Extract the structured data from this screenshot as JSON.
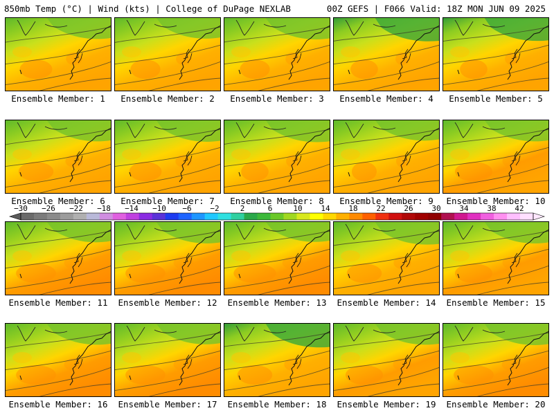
{
  "header": {
    "left_title": "850mb Temp (°C) | Wind (kts) | College of DuPage NEXLAB",
    "right_title": "00Z GEFS | F066 Valid: 18Z MON JUN 09 2025"
  },
  "members": [
    {
      "label": "Ensemble Member: 1",
      "green_strength": 0.55,
      "orange_strength": 0.65
    },
    {
      "label": "Ensemble Member: 2",
      "green_strength": 0.5,
      "orange_strength": 0.6
    },
    {
      "label": "Ensemble Member: 3",
      "green_strength": 0.6,
      "orange_strength": 0.6
    },
    {
      "label": "Ensemble Member: 4",
      "green_strength": 0.85,
      "orange_strength": 0.55
    },
    {
      "label": "Ensemble Member: 5",
      "green_strength": 0.8,
      "orange_strength": 0.55
    },
    {
      "label": "Ensemble Member: 6",
      "green_strength": 0.55,
      "orange_strength": 0.7
    },
    {
      "label": "Ensemble Member: 7",
      "green_strength": 0.6,
      "orange_strength": 0.65
    },
    {
      "label": "Ensemble Member: 8",
      "green_strength": 0.65,
      "orange_strength": 0.55
    },
    {
      "label": "Ensemble Member: 9",
      "green_strength": 0.45,
      "orange_strength": 0.5
    },
    {
      "label": "Ensemble Member: 10",
      "green_strength": 0.55,
      "orange_strength": 0.75
    },
    {
      "label": "Ensemble Member: 11",
      "green_strength": 0.45,
      "orange_strength": 0.8
    },
    {
      "label": "Ensemble Member: 12",
      "green_strength": 0.6,
      "orange_strength": 0.8
    },
    {
      "label": "Ensemble Member: 13",
      "green_strength": 0.4,
      "orange_strength": 0.85
    },
    {
      "label": "Ensemble Member: 14",
      "green_strength": 0.75,
      "orange_strength": 0.7
    },
    {
      "label": "Ensemble Member: 15",
      "green_strength": 0.6,
      "orange_strength": 0.75
    },
    {
      "label": "Ensemble Member: 16",
      "green_strength": 0.55,
      "orange_strength": 0.8
    },
    {
      "label": "Ensemble Member: 17",
      "green_strength": 0.5,
      "orange_strength": 0.8
    },
    {
      "label": "Ensemble Member: 18",
      "green_strength": 0.9,
      "orange_strength": 0.7
    },
    {
      "label": "Ensemble Member: 19",
      "green_strength": 0.55,
      "orange_strength": 0.75
    },
    {
      "label": "Ensemble Member: 20",
      "green_strength": 0.6,
      "orange_strength": 0.8
    }
  ],
  "colorbar": {
    "tick_labels": [
      "-30",
      "-26",
      "-22",
      "-18",
      "-14",
      "-10",
      "-6",
      "-2",
      "2",
      "6",
      "10",
      "14",
      "18",
      "22",
      "26",
      "30",
      "34",
      "38",
      "42"
    ],
    "colors": [
      "#6b6b6b",
      "#7b7b7b",
      "#8b8b8b",
      "#9c9c9c",
      "#b0b0b0",
      "#b9b9d9",
      "#d08de0",
      "#e060e0",
      "#c040e0",
      "#8a2be2",
      "#5a32d8",
      "#1e3cf0",
      "#1e64ff",
      "#1e96ff",
      "#20c8ff",
      "#30e0e0",
      "#30d0a0",
      "#2aa84a",
      "#3cb83a",
      "#6ac828",
      "#a0d820",
      "#d8e81e",
      "#ffff00",
      "#ffd800",
      "#ffb000",
      "#ff8a00",
      "#ff6000",
      "#f03010",
      "#d01010",
      "#b00808",
      "#a00000",
      "#900000",
      "#b01050",
      "#d01890",
      "#e030c0",
      "#f060e0",
      "#ff90f0",
      "#ffc0ff",
      "#ffe0ff"
    ]
  }
}
